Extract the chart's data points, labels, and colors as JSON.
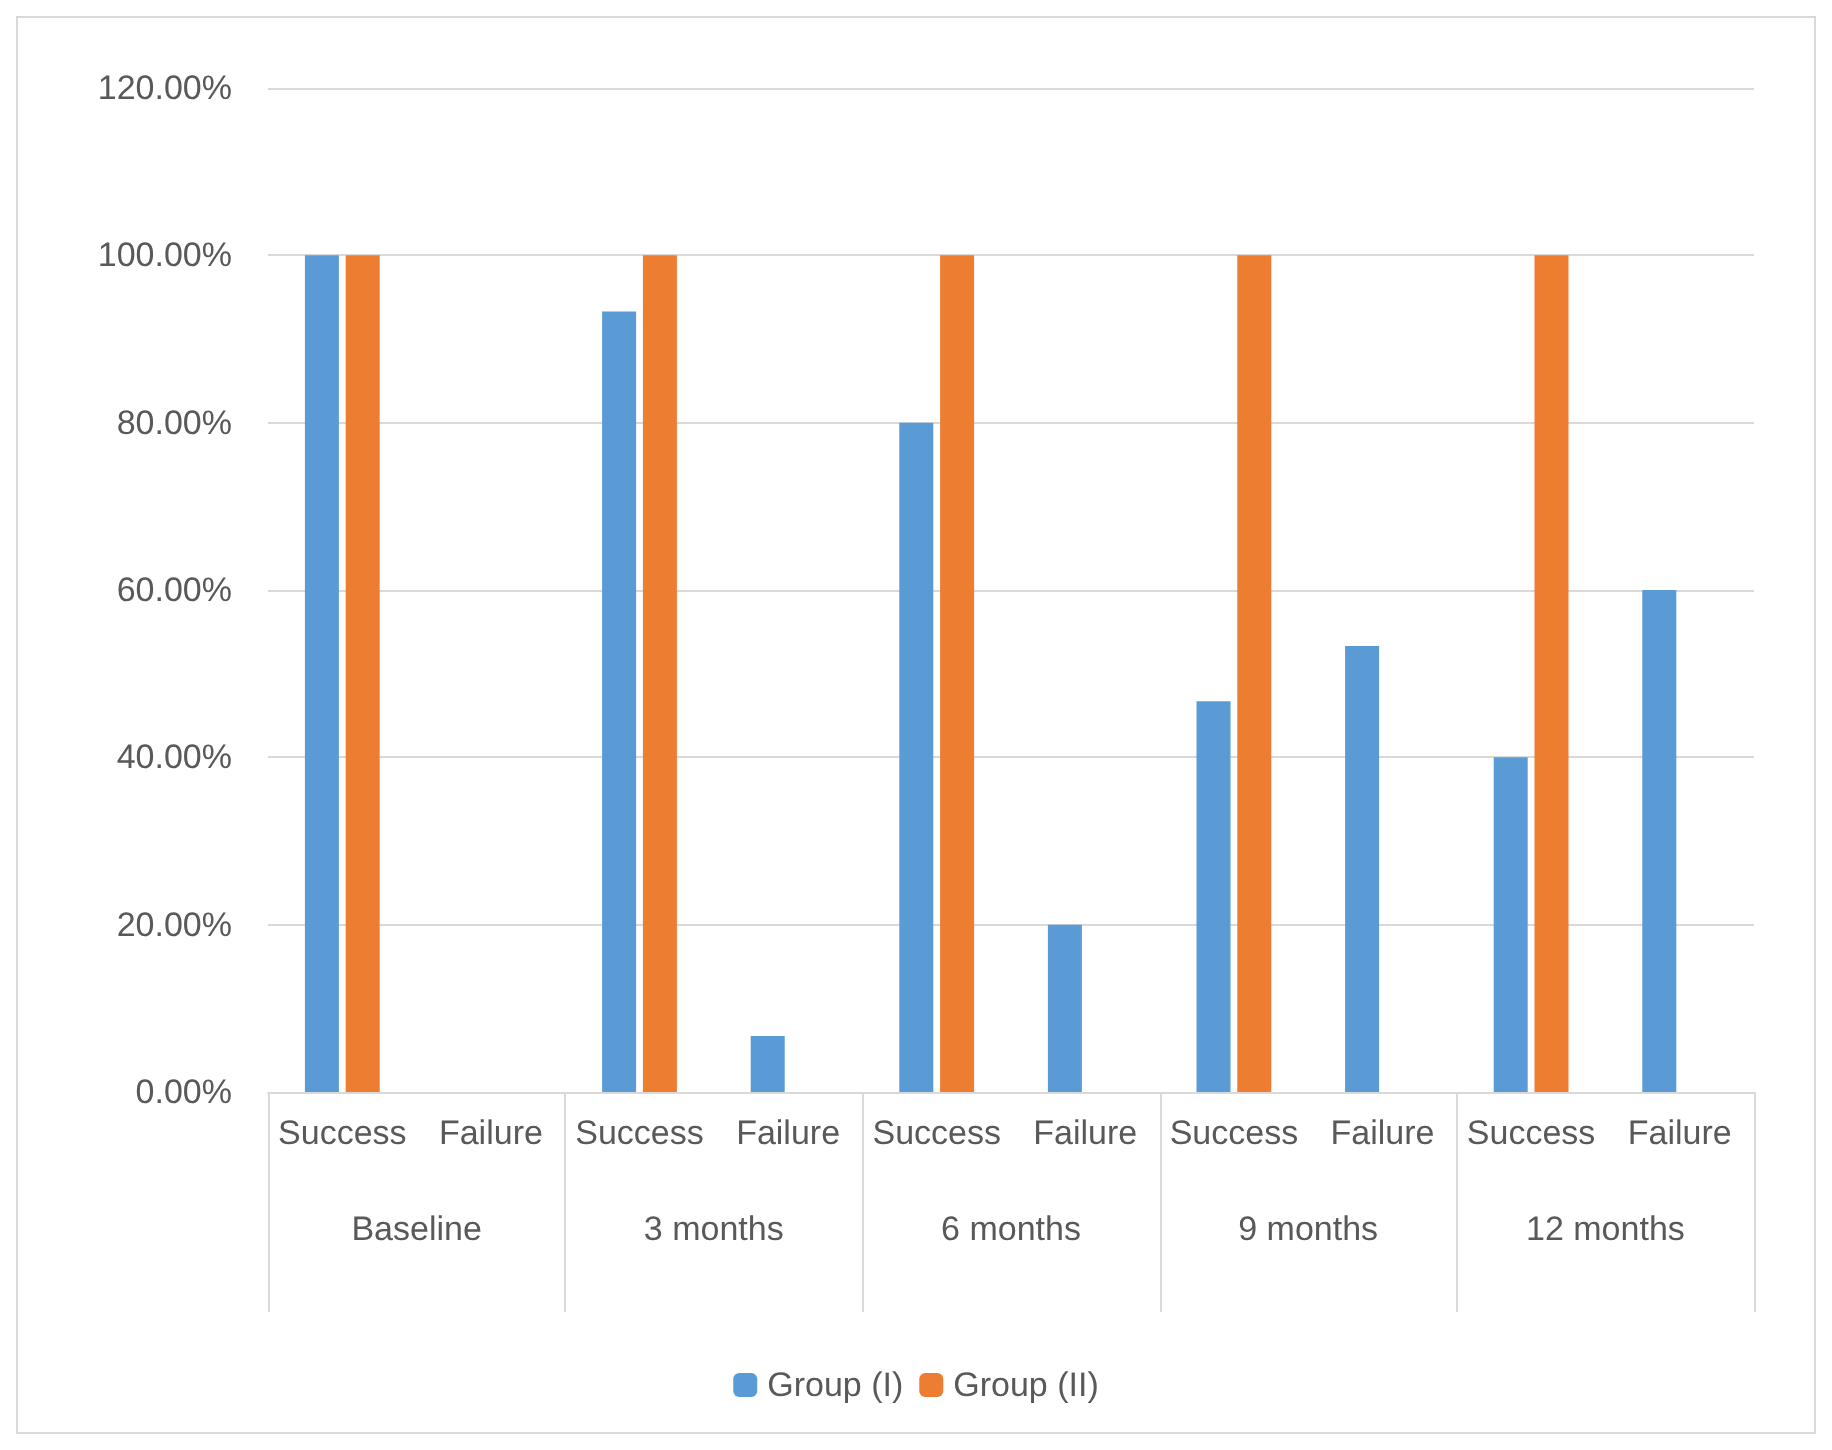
{
  "chart_data": {
    "type": "bar",
    "categories": [
      "Success",
      "Failure",
      "Success",
      "Failure",
      "Success",
      "Failure",
      "Success",
      "Failure",
      "Success",
      "Failure"
    ],
    "annotations": [
      "Baseline",
      "3 months",
      "6 months",
      "9 months",
      "12 months"
    ],
    "series": [
      {
        "name": "Group (I)",
        "color": "#5b9bd5",
        "values": [
          100,
          0,
          93.3,
          6.7,
          80,
          20,
          46.7,
          53.3,
          40,
          60
        ]
      },
      {
        "name": "Group (II)",
        "color": "#ed7d31",
        "values": [
          100,
          0,
          100,
          0,
          100,
          0,
          100,
          0,
          100,
          0
        ]
      }
    ],
    "ylim": [
      0,
      120
    ],
    "yticks": [
      {
        "value": 0,
        "label": "0.00%"
      },
      {
        "value": 20,
        "label": "20.00%"
      },
      {
        "value": 40,
        "label": "40.00%"
      },
      {
        "value": 60,
        "label": "60.00%"
      },
      {
        "value": 80,
        "label": "80.00%"
      },
      {
        "value": 100,
        "label": "100.00%"
      },
      {
        "value": 120,
        "label": "120.00%"
      }
    ],
    "grid": "y",
    "legend": "bottom"
  }
}
